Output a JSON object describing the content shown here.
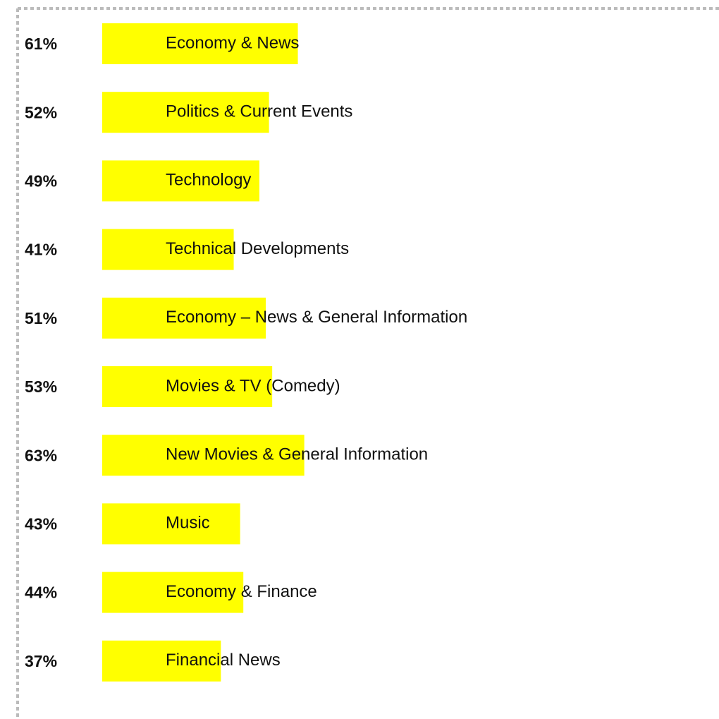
{
  "chart_data": {
    "type": "bar",
    "categories": [
      "Economy & News",
      "Politics & Current Events",
      "Technology",
      "Technical Developments",
      "Economy – News & General Information",
      "Movies & TV (Comedy)",
      "New Movies & General Information",
      "Music",
      "Economy & Finance",
      "Financial News"
    ],
    "values": [
      61,
      52,
      49,
      41,
      51,
      53,
      63,
      43,
      44,
      37
    ],
    "value_labels": [
      "61%",
      "52%",
      "49%",
      "41%",
      "51%",
      "53%",
      "63%",
      "43%",
      "44%",
      "37%"
    ],
    "color": "#ffff00"
  }
}
